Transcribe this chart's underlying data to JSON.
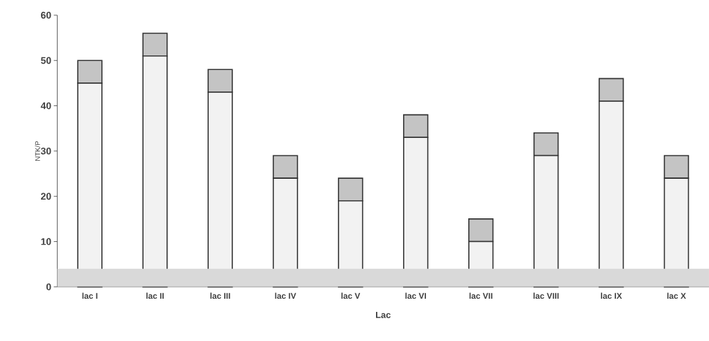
{
  "chart_data": {
    "type": "bar",
    "stacked": true,
    "xlabel": "Lac",
    "ylabel": "NTK/P",
    "categories": [
      "lac I",
      "lac II",
      "lac III",
      "lac IV",
      "lac V",
      "lac VI",
      "lac VII",
      "lac VIII",
      "lac IX",
      "lac X"
    ],
    "series": [
      {
        "color": "#f2f2f2",
        "values": [
          45,
          51,
          43,
          24,
          19,
          33,
          10,
          29,
          41,
          24
        ]
      },
      {
        "color": "#c4c4c4",
        "values": [
          5,
          5,
          5,
          5,
          5,
          5,
          5,
          5,
          5,
          5
        ]
      }
    ],
    "ylim": [
      0,
      60
    ],
    "yticks": [
      0,
      10,
      20,
      30,
      40,
      50,
      60
    ],
    "bands": [
      {
        "axis": "y",
        "from": 0,
        "to": 4,
        "color": "#d9d9d9"
      }
    ]
  }
}
